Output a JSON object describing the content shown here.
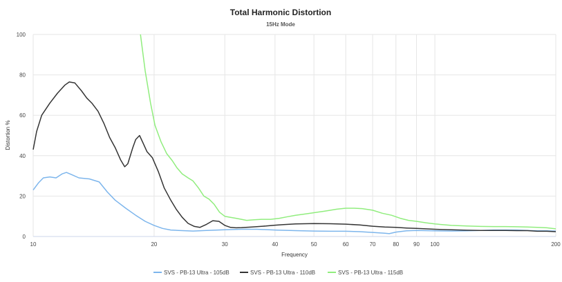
{
  "chart_data": {
    "type": "line",
    "title": "Total Harmonic Distortion",
    "subtitle": "15Hz Mode",
    "xlabel": "Frequency",
    "ylabel": "Distortion %",
    "xscale": "log",
    "xlim": [
      10,
      200
    ],
    "ylim": [
      0,
      100
    ],
    "x_ticks": [
      10,
      20,
      30,
      40,
      50,
      60,
      70,
      80,
      90,
      100,
      200
    ],
    "y_ticks": [
      0,
      20,
      40,
      60,
      80,
      100
    ],
    "grid": true,
    "legend_position": "bottom-center",
    "series": [
      {
        "name": "SVS - PB-13 Ultra - 105dB",
        "color": "#7cb5ec",
        "points": [
          [
            10,
            23
          ],
          [
            10.3,
            26.5
          ],
          [
            10.6,
            29
          ],
          [
            11,
            29.5
          ],
          [
            11.4,
            29
          ],
          [
            11.8,
            31
          ],
          [
            12.1,
            31.7
          ],
          [
            12.5,
            30.5
          ],
          [
            13,
            29
          ],
          [
            13.8,
            28.5
          ],
          [
            14.6,
            27
          ],
          [
            15.3,
            22
          ],
          [
            16,
            18
          ],
          [
            17,
            14
          ],
          [
            18,
            10.5
          ],
          [
            19,
            7.5
          ],
          [
            20,
            5.5
          ],
          [
            21,
            4
          ],
          [
            22,
            3.2
          ],
          [
            23,
            3
          ],
          [
            25,
            2.7
          ],
          [
            27,
            3
          ],
          [
            30,
            3.3
          ],
          [
            33,
            3.6
          ],
          [
            36,
            3.6
          ],
          [
            40,
            3.2
          ],
          [
            45,
            2.9
          ],
          [
            50,
            2.7
          ],
          [
            55,
            2.6
          ],
          [
            60,
            2.6
          ],
          [
            65,
            2.4
          ],
          [
            70,
            2
          ],
          [
            75,
            1.6
          ],
          [
            77,
            1.4
          ],
          [
            80,
            2.2
          ],
          [
            85,
            2.8
          ],
          [
            90,
            3
          ],
          [
            100,
            2.8
          ],
          [
            110,
            2.7
          ],
          [
            120,
            2.8
          ],
          [
            130,
            3
          ],
          [
            140,
            3.2
          ],
          [
            150,
            3.2
          ],
          [
            160,
            3.2
          ],
          [
            170,
            3
          ],
          [
            180,
            2.8
          ],
          [
            190,
            2.8
          ],
          [
            200,
            2.7
          ]
        ]
      },
      {
        "name": "SVS - PB-13 Ultra - 110dB",
        "color": "#333333",
        "points": [
          [
            10,
            43
          ],
          [
            10.2,
            52
          ],
          [
            10.5,
            60
          ],
          [
            11,
            66
          ],
          [
            11.5,
            71
          ],
          [
            12,
            75
          ],
          [
            12.3,
            76.5
          ],
          [
            12.7,
            76
          ],
          [
            13.2,
            72
          ],
          [
            13.6,
            68.5
          ],
          [
            14,
            66
          ],
          [
            14.5,
            62
          ],
          [
            15,
            56
          ],
          [
            15.5,
            49
          ],
          [
            16,
            44
          ],
          [
            16.5,
            38
          ],
          [
            16.9,
            34.5
          ],
          [
            17.2,
            36
          ],
          [
            17.7,
            44
          ],
          [
            18,
            48
          ],
          [
            18.4,
            50
          ],
          [
            18.8,
            46
          ],
          [
            19.2,
            42
          ],
          [
            19.8,
            39
          ],
          [
            20.5,
            32
          ],
          [
            21.2,
            24
          ],
          [
            22,
            18
          ],
          [
            22.7,
            13.5
          ],
          [
            23.5,
            9.5
          ],
          [
            24.3,
            6.5
          ],
          [
            25.2,
            5
          ],
          [
            26,
            4.5
          ],
          [
            27,
            6
          ],
          [
            28,
            7.8
          ],
          [
            29,
            7.5
          ],
          [
            30,
            5.5
          ],
          [
            31,
            4.5
          ],
          [
            32,
            4.3
          ],
          [
            33,
            4.4
          ],
          [
            35,
            4.7
          ],
          [
            38,
            5.2
          ],
          [
            40,
            5.6
          ],
          [
            42,
            5.9
          ],
          [
            45,
            6.2
          ],
          [
            50,
            6.4
          ],
          [
            55,
            6.3
          ],
          [
            60,
            6.1
          ],
          [
            65,
            5.7
          ],
          [
            70,
            5.1
          ],
          [
            75,
            4.7
          ],
          [
            80,
            4.5
          ],
          [
            85,
            4.2
          ],
          [
            90,
            4
          ],
          [
            95,
            3.8
          ],
          [
            100,
            3.6
          ],
          [
            110,
            3.3
          ],
          [
            120,
            3.1
          ],
          [
            130,
            3
          ],
          [
            140,
            3
          ],
          [
            150,
            3
          ],
          [
            160,
            2.9
          ],
          [
            170,
            2.9
          ],
          [
            180,
            2.6
          ],
          [
            190,
            2.6
          ],
          [
            200,
            2.4
          ]
        ]
      },
      {
        "name": "SVS - PB-13 Ultra - 115dB",
        "color": "#90ed7d",
        "points": [
          [
            18.5,
            100
          ],
          [
            19,
            82
          ],
          [
            19.6,
            66
          ],
          [
            20.1,
            55
          ],
          [
            20.8,
            47
          ],
          [
            21.5,
            41
          ],
          [
            22.2,
            37.5
          ],
          [
            22.8,
            34
          ],
          [
            23.5,
            31
          ],
          [
            24.3,
            29
          ],
          [
            25,
            27.5
          ],
          [
            25.8,
            24
          ],
          [
            26.6,
            20
          ],
          [
            27.4,
            18.5
          ],
          [
            28.2,
            16
          ],
          [
            29.1,
            12
          ],
          [
            30,
            10
          ],
          [
            31,
            9.5
          ],
          [
            32,
            9
          ],
          [
            33,
            8.5
          ],
          [
            34,
            8
          ],
          [
            35.5,
            8.3
          ],
          [
            37,
            8.5
          ],
          [
            39,
            8.5
          ],
          [
            41,
            9
          ],
          [
            43,
            9.8
          ],
          [
            45,
            10.5
          ],
          [
            47,
            11
          ],
          [
            49,
            11.5
          ],
          [
            51,
            12
          ],
          [
            53,
            12.5
          ],
          [
            55,
            13
          ],
          [
            57,
            13.5
          ],
          [
            60,
            14
          ],
          [
            63,
            14
          ],
          [
            66,
            13.8
          ],
          [
            70,
            13
          ],
          [
            74,
            11.5
          ],
          [
            78,
            10.5
          ],
          [
            82,
            9
          ],
          [
            86,
            8
          ],
          [
            90,
            7.5
          ],
          [
            95,
            6.8
          ],
          [
            100,
            6.2
          ],
          [
            110,
            5.5
          ],
          [
            120,
            5.2
          ],
          [
            130,
            5
          ],
          [
            140,
            4.9
          ],
          [
            150,
            4.9
          ],
          [
            160,
            4.8
          ],
          [
            170,
            4.7
          ],
          [
            180,
            4.5
          ],
          [
            190,
            4.3
          ],
          [
            200,
            3.8
          ]
        ]
      }
    ]
  }
}
